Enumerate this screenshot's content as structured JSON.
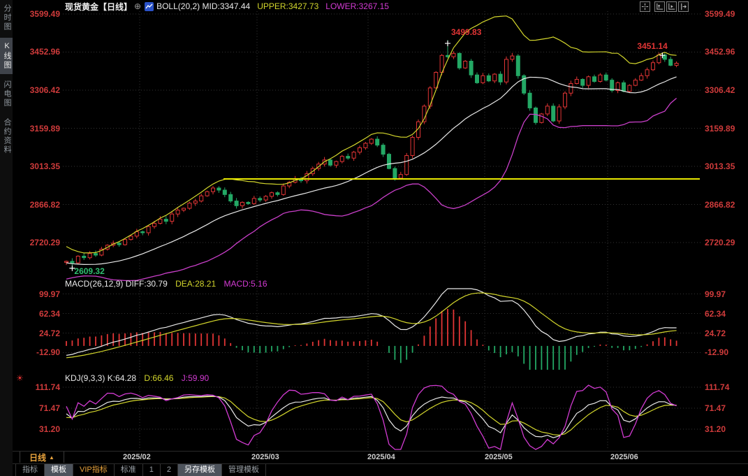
{
  "header": {
    "symbol": "现货黄金",
    "period": "【日线】",
    "settings_icon": "⊕",
    "indicator": "BOLL(20,2)",
    "mid_label": "MID:3347.44",
    "upper_label": "UPPER:3427.73",
    "lower_label": "LOWER:3267.15",
    "icons": [
      "crosshair-icon",
      "axis-zoom-icon",
      "axis-run-icon",
      "pan-right-icon"
    ]
  },
  "sidebar": {
    "items": [
      {
        "label": "分时图",
        "selected": false
      },
      {
        "label": "K线图",
        "selected": true
      },
      {
        "label": "闪电图",
        "selected": false
      },
      {
        "label": "合约资料",
        "selected": false
      }
    ]
  },
  "footer": {
    "period_selector": "日线",
    "period_arrow": "▲",
    "tabs": [
      {
        "label": "指标",
        "style": "plain"
      },
      {
        "label": "模板",
        "style": "selected"
      },
      {
        "label": "VIP指标",
        "style": "vip"
      },
      {
        "label": "标准",
        "style": "plain"
      },
      {
        "label": "1",
        "style": "plain"
      },
      {
        "label": "2",
        "style": "plain"
      },
      {
        "label": "另存模板",
        "style": "selected"
      },
      {
        "label": "管理模板",
        "style": "plain"
      }
    ]
  },
  "chart_data": {
    "type": "candlestick",
    "title": "现货黄金【日线】",
    "x_labels": [
      "2025/02",
      "2025/03",
      "2025/04",
      "2025/05",
      "2025/06"
    ],
    "price_axis_ticks": [
      3599.49,
      3452.96,
      3306.42,
      3159.89,
      3013.35,
      2866.82,
      2720.29
    ],
    "ylim": [
      2600,
      3610
    ],
    "open_first": 2644,
    "closes": [
      2648,
      2642,
      2668,
      2662,
      2678,
      2672,
      2695,
      2710,
      2718,
      2712,
      2732,
      2745,
      2762,
      2758,
      2782,
      2794,
      2810,
      2802,
      2830,
      2845,
      2852,
      2872,
      2880,
      2900,
      2916,
      2930,
      2922,
      2905,
      2880,
      2862,
      2875,
      2870,
      2890,
      2884,
      2898,
      2912,
      2905,
      2938,
      2952,
      2965,
      2958,
      2985,
      3005,
      3022,
      3038,
      3018,
      3032,
      3052,
      3045,
      3068,
      3085,
      3102,
      3118,
      3095,
      3060,
      3005,
      2968,
      2982,
      3055,
      3125,
      3185,
      3245,
      3315,
      3375,
      3440,
      3435,
      3448,
      3392,
      3418,
      3365,
      3335,
      3362,
      3342,
      3368,
      3338,
      3425,
      3438,
      3362,
      3295,
      3238,
      3182,
      3215,
      3245,
      3188,
      3242,
      3295,
      3332,
      3348,
      3325,
      3358,
      3340,
      3365,
      3345,
      3305,
      3335,
      3302,
      3325,
      3345,
      3362,
      3385,
      3412,
      3442,
      3425,
      3402,
      3410
    ],
    "annotations": {
      "peak_value": 3499.83,
      "peak_index": 65,
      "recent_high_value": 3451.14,
      "recent_high_index": 101,
      "low_value": 2609.32,
      "low_index": 1
    },
    "hline": {
      "price": 2965,
      "color": "#e8e800"
    },
    "boll": {
      "period": 20,
      "mult": 2,
      "mid": 3347.44,
      "upper": 3427.73,
      "lower": 3267.15,
      "pad": [
        2720,
        2712,
        2700,
        2688,
        2675,
        2668,
        2655,
        2645,
        2638,
        2630,
        2622,
        2615,
        2610,
        2605,
        2600,
        2608,
        2618,
        2628,
        2638,
        2645
      ]
    },
    "macd": {
      "title": "MACD(26,12,9)",
      "diff_label": "DIFF:30.79",
      "dea_label": "DEA:28.21",
      "macd_label": "MACD:5.16",
      "diff": 30.79,
      "dea": 28.21,
      "macd": 5.16,
      "axis_ticks": [
        99.97,
        62.34,
        24.72,
        -12.9
      ],
      "ylim": [
        -45,
        110
      ]
    },
    "kdj": {
      "title": "KDJ(9,3,3)",
      "k_label": "K:64.28",
      "d_label": "D:66.46",
      "j_label": "J:59.90",
      "k": 64.28,
      "d": 66.46,
      "j": 59.9,
      "marker_icon": "☀",
      "axis_ticks": [
        111.74,
        71.47,
        31.2
      ],
      "ylim": [
        -25,
        125
      ]
    },
    "colors": {
      "up": "#e23535",
      "down": "#23a865",
      "axis_text": "#cf3b3b",
      "boll_mid": "#e9e9e9",
      "boll_upper": "#d3d62c",
      "boll_lower": "#c93fc9",
      "diff_line": "#e9e9e9",
      "dea_line": "#d3d62c",
      "k_line": "#e9e9e9",
      "d_line": "#d3d62c",
      "j_line": "#d23bd2",
      "grid": "#343434",
      "annotation_high": "#e23535",
      "annotation_low": "#2fbf71"
    }
  }
}
